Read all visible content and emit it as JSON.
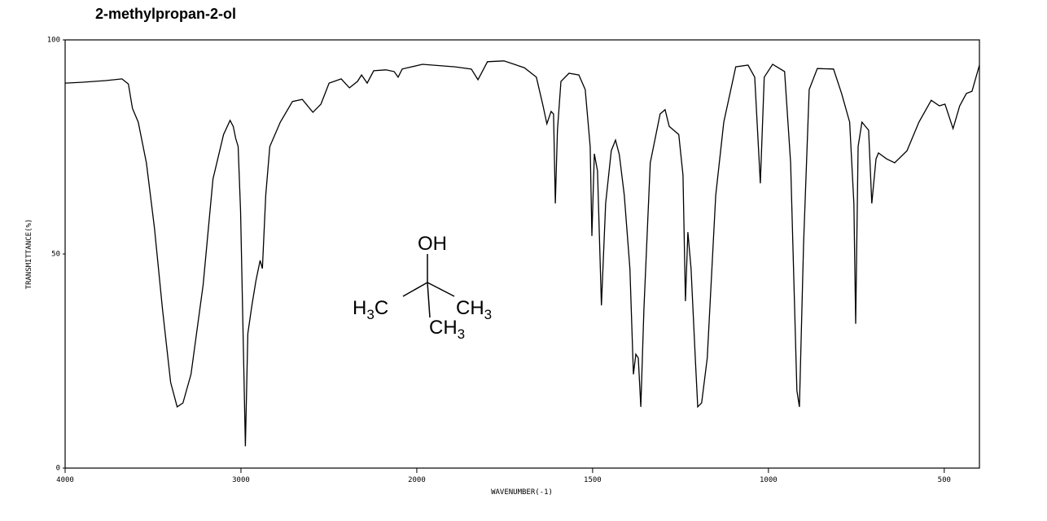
{
  "chart_data": {
    "type": "line",
    "title": "2-methylpropan-2-ol",
    "x_label": "WAVENUMBER(-1)",
    "y_label": "TRANSMITTANCE(%)",
    "xlim": [
      4000,
      400
    ],
    "x_scale_break": 2000,
    "x_scale_factor": 2,
    "xticks": [
      4000,
      3000,
      2000,
      1500,
      1000,
      500
    ],
    "ylim": [
      0,
      100
    ],
    "yticks": [
      0,
      50,
      100
    ],
    "series": [
      {
        "color": "#000000",
        "x": [
          4000,
          3908,
          3769,
          3677,
          3640,
          3617,
          3584,
          3538,
          3492,
          3446,
          3400,
          3363,
          3330,
          3284,
          3215,
          3159,
          3099,
          3062,
          3044,
          3030,
          3016,
          3002,
          2984,
          2975,
          2961,
          2938,
          2915,
          2891,
          2878,
          2859,
          2836,
          2776,
          2707,
          2651,
          2591,
          2545,
          2499,
          2430,
          2383,
          2337,
          2314,
          2282,
          2245,
          2176,
          2129,
          2106,
          2083,
          1984,
          1891,
          1845,
          1826,
          1799,
          1752,
          1694,
          1660,
          1641,
          1630,
          1618,
          1611,
          1606,
          1600,
          1590,
          1567,
          1539,
          1521,
          1507,
          1502,
          1495,
          1486,
          1475,
          1463,
          1447,
          1435,
          1424,
          1410,
          1394,
          1384,
          1377,
          1370,
          1363,
          1354,
          1336,
          1308,
          1294,
          1282,
          1255,
          1243,
          1236,
          1229,
          1220,
          1208,
          1201,
          1190,
          1174,
          1150,
          1127,
          1093,
          1058,
          1039,
          1023,
          1012,
          988,
          954,
          937,
          919,
          912,
          900,
          884,
          861,
          815,
          792,
          769,
          757,
          752,
          745,
          734,
          715,
          706,
          694,
          687,
          664,
          641,
          606,
          572,
          537,
          514,
          498,
          475,
          456,
          437,
          421,
          400
        ],
        "values": [
          89.9,
          90.1,
          90.5,
          90.9,
          89.7,
          84.0,
          80.8,
          71.3,
          56.1,
          37.1,
          20.0,
          14.3,
          15.2,
          21.9,
          42.8,
          67.5,
          77.9,
          81.2,
          79.8,
          77.0,
          75.1,
          59.9,
          23.8,
          5.1,
          31.4,
          38.0,
          43.7,
          48.5,
          46.6,
          63.7,
          75.1,
          80.8,
          85.6,
          86.1,
          83.1,
          85.0,
          89.9,
          90.9,
          88.8,
          90.3,
          91.8,
          89.9,
          92.8,
          93.0,
          92.6,
          91.3,
          93.2,
          94.3,
          93.7,
          93.2,
          90.7,
          94.9,
          95.1,
          93.5,
          91.3,
          84.6,
          80.4,
          83.3,
          82.7,
          61.8,
          78.9,
          90.3,
          92.2,
          91.8,
          88.4,
          75.1,
          54.2,
          73.4,
          69.4,
          38.0,
          61.8,
          74.1,
          76.6,
          73.2,
          63.7,
          46.6,
          21.9,
          26.6,
          25.7,
          14.3,
          37.1,
          71.3,
          82.7,
          83.7,
          79.8,
          77.9,
          68.4,
          39.0,
          55.1,
          46.6,
          25.7,
          14.3,
          15.2,
          25.7,
          63.7,
          80.8,
          93.7,
          94.1,
          91.3,
          66.5,
          91.3,
          94.3,
          92.6,
          71.3,
          18.1,
          14.3,
          52.3,
          88.4,
          93.3,
          93.2,
          87.5,
          80.8,
          61.8,
          33.7,
          75.1,
          80.8,
          78.9,
          61.8,
          72.2,
          73.6,
          72.2,
          71.3,
          74.1,
          80.8,
          85.9,
          84.6,
          85.0,
          79.3,
          84.6,
          87.5,
          88.0,
          94.1
        ]
      }
    ],
    "structure": {
      "labels": [
        "OH",
        "H3C",
        "CH3",
        "CH3"
      ]
    }
  }
}
